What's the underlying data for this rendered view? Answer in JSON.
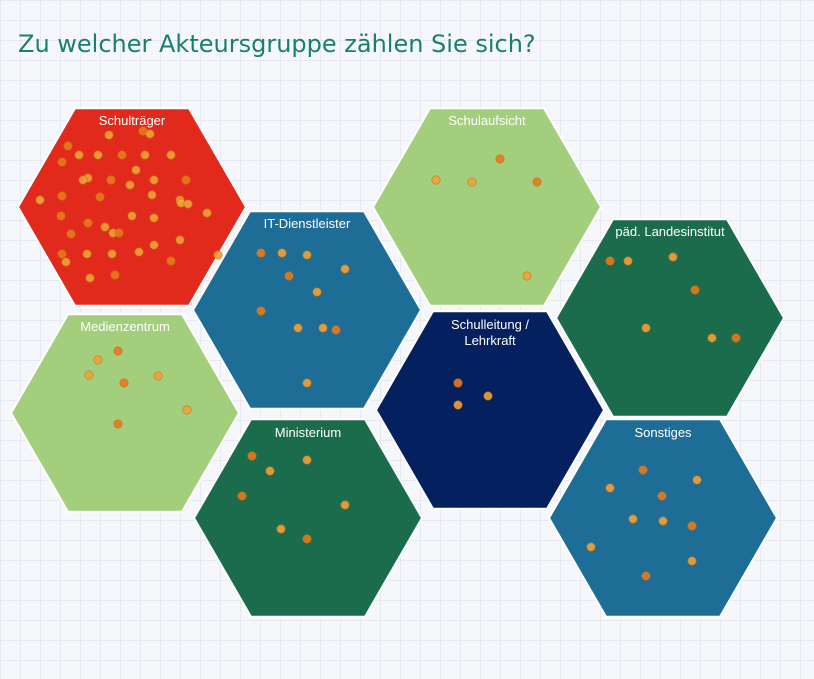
{
  "page": {
    "question": "Zu welcher Akteursgruppe zählen Sie sich?"
  },
  "groups": [
    {
      "label": [
        "Schulträger"
      ],
      "color": "#e22a1c",
      "responses": 44
    },
    {
      "label": [
        "IT-Dienstleister"
      ],
      "color": "#1d6d97",
      "responses": 11
    },
    {
      "label": [
        "Schulaufsicht"
      ],
      "color": "#a3cf7c",
      "responses": 5
    },
    {
      "label": [
        "päd. Landesinstitut"
      ],
      "color": "#1b6b4d",
      "responses": 7
    },
    {
      "label": [
        "Medienzentrum"
      ],
      "color": "#a3cf7c",
      "responses": 7
    },
    {
      "label": [
        "Schulleitung /",
        "Lehrkraft"
      ],
      "color": "#04205e",
      "responses": 3
    },
    {
      "label": [
        "Ministerium"
      ],
      "color": "#1b6b4d",
      "responses": 8
    },
    {
      "label": [
        "Sonstiges"
      ],
      "color": "#1d6d97",
      "responses": 13
    }
  ],
  "dot_color": "#f0a23a",
  "dot_color_alt": "#e8781e"
}
